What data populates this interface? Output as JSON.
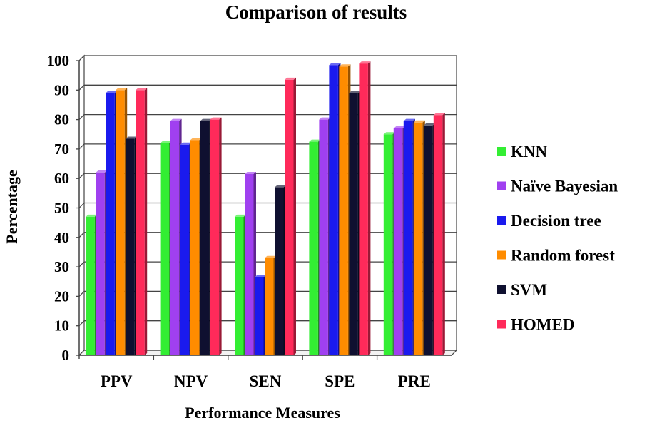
{
  "chart_data": {
    "type": "bar",
    "title": "Comparison of results",
    "xlabel": "Performance Measures",
    "ylabel": "Percentage",
    "categories": [
      "PPV",
      "NPV",
      "SEN",
      "SPE",
      "PRE"
    ],
    "ylim": [
      0,
      100
    ],
    "yticks": [
      "0",
      "10",
      "20",
      "30",
      "40",
      "50",
      "60",
      "70",
      "80",
      "90",
      "100"
    ],
    "grid": true,
    "legend_position": "right",
    "series": [
      {
        "name": "KNN",
        "color": "#33ee33",
        "values": [
          47,
          72,
          47,
          72.5,
          75
        ]
      },
      {
        "name": "Naïve Bayesian",
        "color": "#a040f0",
        "values": [
          62,
          79.5,
          61.5,
          80,
          77
        ]
      },
      {
        "name": "Decision tree",
        "color": "#1a1aee",
        "values": [
          89,
          71.5,
          26.5,
          98.5,
          79.5
        ]
      },
      {
        "name": "Random forest",
        "color": "#ff8c00",
        "values": [
          90,
          73,
          33,
          98,
          79
        ]
      },
      {
        "name": "SVM",
        "color": "#0f1030",
        "values": [
          73.5,
          79.5,
          57,
          89,
          78
        ]
      },
      {
        "name": "HOMED",
        "color": "#ff2a5a",
        "values": [
          90,
          80,
          93.5,
          99,
          81.5
        ]
      }
    ]
  }
}
